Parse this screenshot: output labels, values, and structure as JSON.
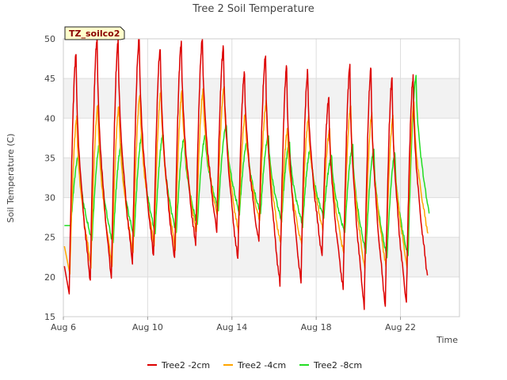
{
  "chart_data": {
    "type": "line",
    "title": "Tree 2 Soil Temperature",
    "xlabel": "Time",
    "ylabel": "Soil Temperature (C)",
    "badge": "TZ_soilco2",
    "xlim": [
      6.0,
      24.8
    ],
    "ylim": [
      15,
      50
    ],
    "x_ticks": [
      {
        "value": 6,
        "label": "Aug 6"
      },
      {
        "value": 10,
        "label": "Aug 10"
      },
      {
        "value": 14,
        "label": "Aug 14"
      },
      {
        "value": 18,
        "label": "Aug 18"
      },
      {
        "value": 22,
        "label": "Aug 22"
      }
    ],
    "y_ticks": [
      15,
      20,
      25,
      30,
      35,
      40,
      45,
      50
    ],
    "grid": true,
    "legend_position": "bottom",
    "colors": {
      "Tree2 -2cm": "#dd0000",
      "Tree2 -4cm": "#ffa500",
      "Tree2 -8cm": "#22dd22"
    },
    "series": [
      {
        "name": "Tree2 -2cm",
        "mins": [
          18.2,
          19.5,
          19.8,
          21.8,
          22.6,
          22.0,
          23.8,
          25.6,
          22.0,
          24.2,
          19.0,
          19.4,
          22.6,
          18.6,
          16.4,
          16.5,
          16.8,
          20.2
        ],
        "maxs": [
          48.0,
          50.0,
          49.6,
          50.0,
          48.8,
          49.6,
          50.0,
          49.0,
          45.8,
          47.8,
          46.5,
          45.8,
          42.5,
          46.5,
          46.2,
          45.0,
          45.0
        ]
      },
      {
        "name": "Tree2 -4cm",
        "mins": [
          20.5,
          21.5,
          21.5,
          23.0,
          24.0,
          23.5,
          25.5,
          27.5,
          25.5,
          27.0,
          24.0,
          24.0,
          26.0,
          23.0,
          21.0,
          21.5,
          21.5,
          25.5
        ],
        "maxs": [
          40.0,
          41.5,
          41.5,
          43.0,
          43.5,
          43.5,
          43.5,
          44.0,
          40.5,
          42.0,
          38.5,
          40.0,
          38.5,
          41.5,
          40.5,
          40.0,
          42.0
        ]
      },
      {
        "name": "Tree2 -8cm",
        "mins": [
          26.5,
          24.5,
          24.0,
          25.0,
          25.5,
          25.5,
          26.5,
          28.5,
          28.0,
          28.0,
          27.0,
          26.5,
          27.5,
          25.5,
          23.0,
          22.5,
          22.5,
          28.0
        ],
        "maxs": [
          35.5,
          37.0,
          36.5,
          38.0,
          38.0,
          37.5,
          37.8,
          39.2,
          37.2,
          37.8,
          37.0,
          36.2,
          35.2,
          36.5,
          36.0,
          35.5,
          45.2
        ]
      }
    ]
  }
}
